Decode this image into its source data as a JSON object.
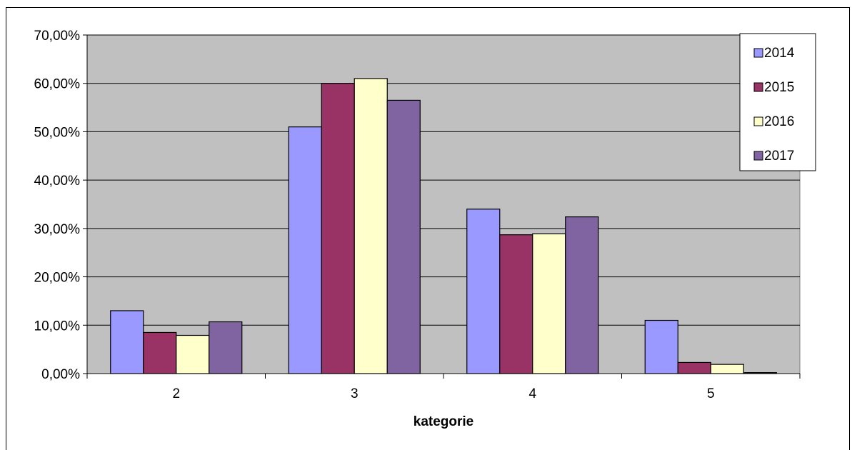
{
  "chart_data": {
    "type": "bar",
    "title": "",
    "xlabel": "kategorie",
    "ylabel": "",
    "categories": [
      "2",
      "3",
      "4",
      "5"
    ],
    "ylim": [
      0,
      70
    ],
    "yticks": [
      0,
      10,
      20,
      30,
      40,
      50,
      60,
      70
    ],
    "ytick_labels": [
      "0,00%",
      "10,00%",
      "20,00%",
      "30,00%",
      "40,00%",
      "50,00%",
      "60,00%",
      "70,00%"
    ],
    "grid": true,
    "legend_position": "top-right",
    "series": [
      {
        "name": "2014",
        "color": "#9999ff",
        "values": [
          13.0,
          51.0,
          34.0,
          11.0
        ]
      },
      {
        "name": "2015",
        "color": "#993366",
        "values": [
          8.5,
          60.0,
          28.7,
          2.3
        ]
      },
      {
        "name": "2016",
        "color": "#ffffcc",
        "values": [
          7.9,
          61.0,
          28.9,
          1.9
        ]
      },
      {
        "name": "2017",
        "color": "#8064a2",
        "values": [
          10.7,
          56.5,
          32.4,
          0.2
        ]
      }
    ],
    "plot_background": "#c0c0c0"
  }
}
